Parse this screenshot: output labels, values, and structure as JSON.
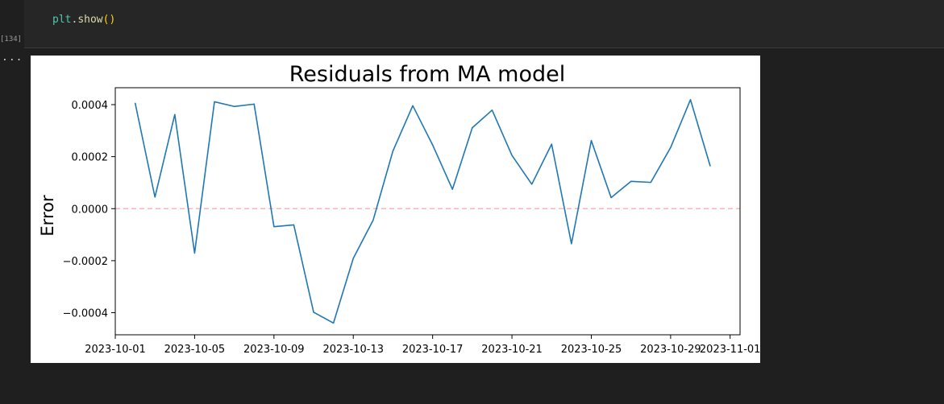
{
  "notebook": {
    "execution_count": "[134]",
    "code": {
      "var": "plt",
      "dot": ".",
      "fn": "show",
      "parens": "()"
    },
    "output_marker": "..."
  },
  "chart_data": {
    "type": "line",
    "title": "Residuals from MA model",
    "xlabel": "",
    "ylabel": "Error",
    "x": [
      "2023-10-02",
      "2023-10-03",
      "2023-10-04",
      "2023-10-05",
      "2023-10-06",
      "2023-10-07",
      "2023-10-08",
      "2023-10-09",
      "2023-10-10",
      "2023-10-11",
      "2023-10-12",
      "2023-10-13",
      "2023-10-14",
      "2023-10-15",
      "2023-10-16",
      "2023-10-17",
      "2023-10-18",
      "2023-10-19",
      "2023-10-20",
      "2023-10-21",
      "2023-10-22",
      "2023-10-23",
      "2023-10-24",
      "2023-10-25",
      "2023-10-26",
      "2023-10-27",
      "2023-10-28",
      "2023-10-29",
      "2023-10-30",
      "2023-10-31"
    ],
    "series": [
      {
        "values": [
          0.000407,
          4.45e-05,
          0.000362,
          -0.000171,
          0.000411,
          0.000393,
          0.000402,
          -6.93e-05,
          -6.24e-05,
          -0.000398,
          -0.00044,
          -0.000191,
          -4.46e-05,
          0.000222,
          0.000396,
          0.000245,
          7.44e-05,
          0.000311,
          0.000379,
          0.000205,
          9.39e-05,
          0.000248,
          -0.000135,
          0.000262,
          4.24e-05,
          0.000105,
          0.000101,
          0.000235,
          0.000419,
          0.000163
        ],
        "color": "#1f77b4"
      }
    ],
    "hline": {
      "y": 0.0,
      "color": "#ffb3b3",
      "style": "dashed"
    },
    "xlim": [
      "2023-10-01T00:00",
      "2023-11-01T12:00"
    ],
    "ylim": [
      -0.000485,
      0.000465
    ],
    "xticks": [
      "2023-10-01",
      "2023-10-05",
      "2023-10-09",
      "2023-10-13",
      "2023-10-17",
      "2023-10-21",
      "2023-10-25",
      "2023-10-29",
      "2023-11-01"
    ],
    "yticks": [
      0.0004,
      0.0002,
      0.0,
      -0.0002,
      -0.0004
    ],
    "ytick_labels": [
      "0.0004",
      "0.0002",
      "0.0000",
      "−0.0002",
      "−0.0004"
    ],
    "grid": false,
    "legend": "none"
  }
}
